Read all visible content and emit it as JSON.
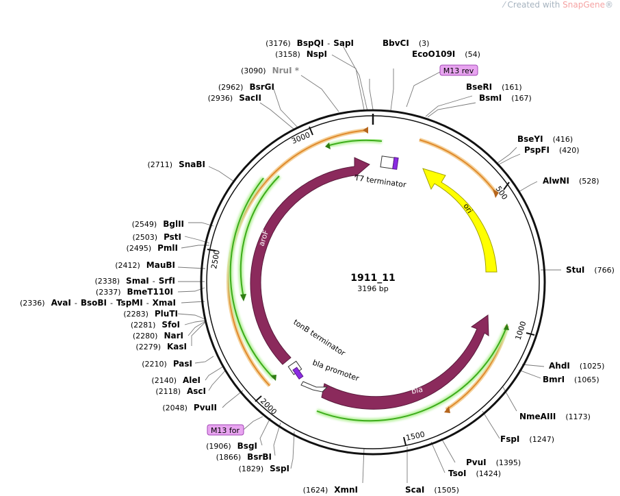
{
  "watermark": {
    "prefix": "Created with ",
    "brand": "SnapGene",
    "suffix": "®"
  },
  "plasmid": {
    "name": "1911_11",
    "size_label": "3196 bp",
    "length": 3196
  },
  "colors": {
    "backbone": "#111111",
    "cds": "#8b2a5c",
    "ori": "#ffff00",
    "orange_arc": "#e08a2c",
    "green_arc": "#3cac1a",
    "primer_fill": "#e8a4f0",
    "misc_purple": "#8a2be2"
  },
  "ticks": [
    {
      "label": "500"
    },
    {
      "label": "1000"
    },
    {
      "label": "1500"
    },
    {
      "label": "2000"
    },
    {
      "label": "2500"
    },
    {
      "label": "3000"
    }
  ],
  "features": [
    {
      "label": "aroF",
      "type": "CDS"
    },
    {
      "label": "bla",
      "type": "CDS"
    },
    {
      "label": "ori",
      "type": "rep_origin"
    },
    {
      "label": "T7 terminator",
      "type": "terminator"
    },
    {
      "label": "tonB terminator",
      "type": "terminator"
    },
    {
      "label": "bla promoter",
      "type": "promoter"
    }
  ],
  "primers": [
    {
      "label": "M13 rev"
    },
    {
      "label": "M13 for"
    }
  ],
  "enzymes_right": [
    {
      "name": "BbvCI",
      "pos": "(3)"
    },
    {
      "name": "EcoO109I",
      "pos": "(54)"
    },
    {
      "name": "BseRI",
      "pos": "(161)"
    },
    {
      "name": "BsmI",
      "pos": "(167)"
    },
    {
      "name": "BseYI",
      "pos": "(416)"
    },
    {
      "name": "PspFI",
      "pos": "(420)"
    },
    {
      "name": "AlwNI",
      "pos": "(528)"
    },
    {
      "name": "StuI",
      "pos": "(766)"
    },
    {
      "name": "AhdI",
      "pos": "(1025)"
    },
    {
      "name": "BmrI",
      "pos": "(1065)"
    },
    {
      "name": "NmeAIII",
      "pos": "(1173)"
    },
    {
      "name": "FspI",
      "pos": "(1247)"
    },
    {
      "name": "PvuI",
      "pos": "(1395)"
    },
    {
      "name": "TsoI",
      "pos": "(1424)"
    },
    {
      "name": "ScaI",
      "pos": "(1505)"
    }
  ],
  "enzymes_left": [
    {
      "name": "BspQI",
      "name2": "SapI",
      "pos": "(3176)"
    },
    {
      "name": "NspI",
      "pos": "(3158)"
    },
    {
      "name": "NruI *",
      "pos": "(3090)",
      "dim": true
    },
    {
      "name": "BsrGI",
      "pos": "(2962)"
    },
    {
      "name": "SacII",
      "pos": "(2936)"
    },
    {
      "name": "SnaBI",
      "pos": "(2711)"
    },
    {
      "name": "BglII",
      "pos": "(2549)"
    },
    {
      "name": "PstI",
      "pos": "(2503)"
    },
    {
      "name": "PmlI",
      "pos": "(2495)"
    },
    {
      "name": "MauBI",
      "pos": "(2412)"
    },
    {
      "name": "SmaI",
      "name2": "SrfI",
      "pos": "(2338)"
    },
    {
      "name": "BmeT110I",
      "pos": "(2337)"
    },
    {
      "name": "AvaI",
      "name2": "BsoBI",
      "name3": "TspMI",
      "name4": "XmaI",
      "pos": "(2336)"
    },
    {
      "name": "PluTI",
      "pos": "(2283)"
    },
    {
      "name": "SfoI",
      "pos": "(2281)"
    },
    {
      "name": "NarI",
      "pos": "(2280)"
    },
    {
      "name": "KasI",
      "pos": "(2279)"
    },
    {
      "name": "PasI",
      "pos": "(2210)"
    },
    {
      "name": "AleI",
      "pos": "(2140)"
    },
    {
      "name": "AscI",
      "pos": "(2118)"
    },
    {
      "name": "PvuII",
      "pos": "(2048)"
    },
    {
      "name": "BsgI",
      "pos": "(1906)"
    },
    {
      "name": "BsrBI",
      "pos": "(1866)"
    },
    {
      "name": "SspI",
      "pos": "(1829)"
    },
    {
      "name": "XmnI",
      "pos": "(1624)"
    }
  ]
}
